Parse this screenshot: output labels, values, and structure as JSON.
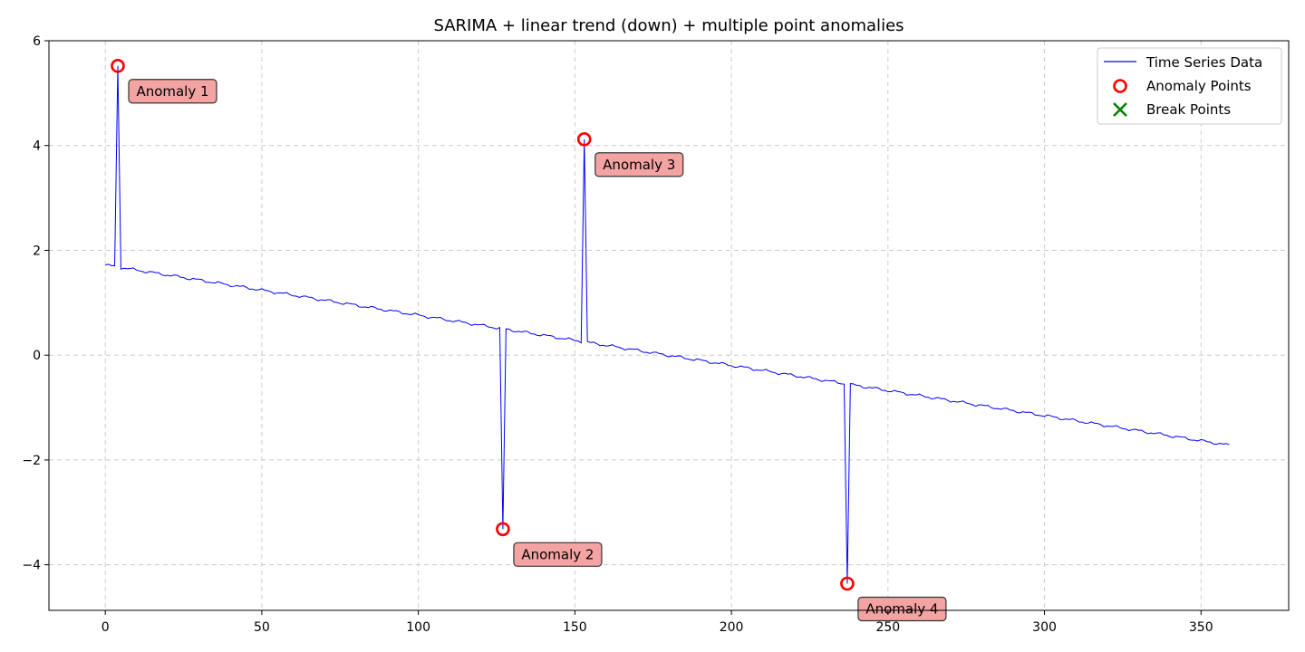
{
  "chart_data": {
    "type": "line",
    "title": "SARIMA + linear trend (down) + multiple point anomalies",
    "xlabel": "",
    "ylabel": "",
    "xlim": [
      -18,
      378
    ],
    "ylim": [
      -4.87,
      6.0
    ],
    "x_ticks": [
      0,
      50,
      100,
      150,
      200,
      250,
      300,
      350
    ],
    "y_ticks": [
      6,
      4,
      2,
      0,
      -2,
      -4
    ],
    "y_tick_labels": [
      "6",
      "4",
      "2",
      "0",
      "−2",
      "−4"
    ],
    "grid": true,
    "legend_position": "top-right",
    "colors": {
      "series": "#0000ff",
      "anomaly": "#ff0000",
      "break": "#008000",
      "grid": "#cccccc",
      "annotation_fill": "#f4a3a3"
    },
    "series": [
      {
        "name": "Time Series Data",
        "trend_start": [
          0,
          1.72
        ],
        "trend_end": [
          359,
          -1.72
        ],
        "x_range": [
          0,
          359
        ]
      }
    ],
    "anomalies": [
      {
        "label": "Anomaly 1",
        "x": 4,
        "y": 5.52
      },
      {
        "label": "Anomaly 2",
        "x": 127,
        "y": -3.32
      },
      {
        "label": "Anomaly 3",
        "x": 153,
        "y": 4.12
      },
      {
        "label": "Anomaly 4",
        "x": 237,
        "y": -4.36
      }
    ],
    "break_points": [],
    "legend": [
      {
        "label": "Time Series Data",
        "marker": "line"
      },
      {
        "label": "Anomaly Points",
        "marker": "circle"
      },
      {
        "label": "Break Points",
        "marker": "x"
      }
    ]
  }
}
